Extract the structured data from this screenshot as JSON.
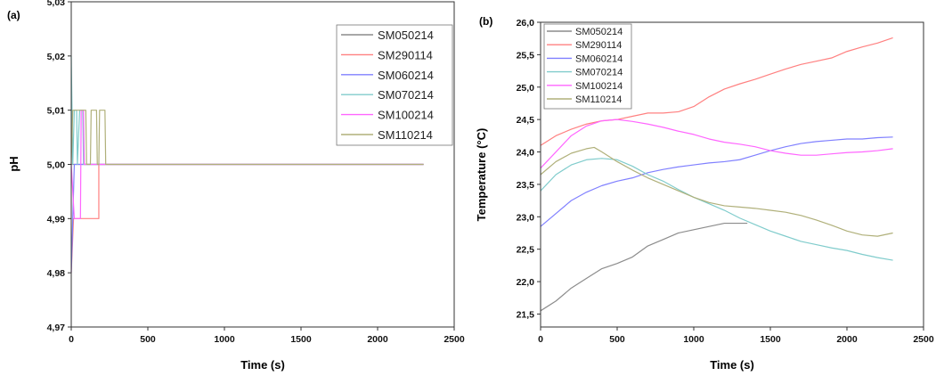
{
  "chart_data": [
    {
      "panel_label": "(a)",
      "type": "line",
      "xlabel": "Time (s)",
      "ylabel": "pH",
      "xlim": [
        0,
        2500
      ],
      "ylim": [
        4.97,
        5.03
      ],
      "xticks": [
        "0",
        "500",
        "1000",
        "1500",
        "2000",
        "2500"
      ],
      "yticks": [
        "4,97",
        "4,98",
        "4,99",
        "5,00",
        "5,01",
        "5,02",
        "5,03"
      ],
      "legend": "top-right",
      "series": [
        {
          "name": "SM050214",
          "color": "#8c8c8c",
          "points": [
            [
              0,
              5.0
            ],
            [
              2300,
              5.0
            ]
          ]
        },
        {
          "name": "SM290114",
          "color": "#ff8080",
          "points": [
            [
              0,
              4.98
            ],
            [
              15,
              4.99
            ],
            [
              180,
              4.99
            ],
            [
              180,
              5.0
            ],
            [
              2300,
              5.0
            ]
          ]
        },
        {
          "name": "SM060214",
          "color": "#8080ff",
          "points": [
            [
              0,
              4.98
            ],
            [
              20,
              5.0
            ],
            [
              2300,
              5.0
            ]
          ]
        },
        {
          "name": "SM070214",
          "color": "#80cccc",
          "points": [
            [
              0,
              5.02
            ],
            [
              10,
              5.0
            ],
            [
              20,
              5.01
            ],
            [
              35,
              5.01
            ],
            [
              40,
              5.0
            ],
            [
              55,
              5.01
            ],
            [
              75,
              5.01
            ],
            [
              80,
              5.0
            ],
            [
              2300,
              5.0
            ]
          ]
        },
        {
          "name": "SM100214",
          "color": "#ff66ff",
          "points": [
            [
              0,
              5.0
            ],
            [
              20,
              4.99
            ],
            [
              60,
              4.99
            ],
            [
              65,
              5.01
            ],
            [
              80,
              5.01
            ],
            [
              85,
              5.0
            ],
            [
              2300,
              5.0
            ]
          ]
        },
        {
          "name": "SM110214",
          "color": "#b0b07a",
          "points": [
            [
              0,
              5.0
            ],
            [
              10,
              5.01
            ],
            [
              95,
              5.01
            ],
            [
              100,
              5.0
            ],
            [
              125,
              5.0
            ],
            [
              130,
              5.01
            ],
            [
              165,
              5.01
            ],
            [
              170,
              5.0
            ],
            [
              180,
              5.0
            ],
            [
              185,
              5.01
            ],
            [
              220,
              5.01
            ],
            [
              225,
              5.0
            ],
            [
              2300,
              5.0
            ]
          ]
        }
      ]
    },
    {
      "panel_label": "(b)",
      "type": "line",
      "xlabel": "Time (s)",
      "ylabel": "Temperature (°C)",
      "xlim": [
        0,
        2500
      ],
      "ylim": [
        21.3,
        26.0
      ],
      "xticks": [
        "0",
        "500",
        "1000",
        "1500",
        "2000",
        "2500"
      ],
      "yticks": [
        "21,5",
        "22,0",
        "22,5",
        "23,0",
        "23,5",
        "24,0",
        "24,5",
        "25,0",
        "25,5",
        "26,0"
      ],
      "legend": "top-left",
      "series": [
        {
          "name": "SM050214",
          "color": "#8c8c8c",
          "points": [
            [
              0,
              21.55
            ],
            [
              100,
              21.7
            ],
            [
              200,
              21.9
            ],
            [
              300,
              22.05
            ],
            [
              400,
              22.2
            ],
            [
              500,
              22.28
            ],
            [
              600,
              22.38
            ],
            [
              700,
              22.55
            ],
            [
              800,
              22.65
            ],
            [
              900,
              22.75
            ],
            [
              1000,
              22.8
            ],
            [
              1100,
              22.85
            ],
            [
              1200,
              22.9
            ],
            [
              1350,
              22.9
            ]
          ]
        },
        {
          "name": "SM290114",
          "color": "#ff8080",
          "points": [
            [
              0,
              24.1
            ],
            [
              100,
              24.25
            ],
            [
              200,
              24.35
            ],
            [
              300,
              24.43
            ],
            [
              400,
              24.48
            ],
            [
              500,
              24.5
            ],
            [
              600,
              24.55
            ],
            [
              700,
              24.6
            ],
            [
              800,
              24.6
            ],
            [
              900,
              24.62
            ],
            [
              1000,
              24.7
            ],
            [
              1100,
              24.85
            ],
            [
              1200,
              24.97
            ],
            [
              1300,
              25.05
            ],
            [
              1400,
              25.12
            ],
            [
              1500,
              25.2
            ],
            [
              1600,
              25.28
            ],
            [
              1700,
              25.35
            ],
            [
              1800,
              25.4
            ],
            [
              1900,
              25.45
            ],
            [
              2000,
              25.55
            ],
            [
              2100,
              25.62
            ],
            [
              2200,
              25.68
            ],
            [
              2300,
              25.76
            ]
          ]
        },
        {
          "name": "SM060214",
          "color": "#8080ff",
          "points": [
            [
              0,
              22.85
            ],
            [
              100,
              23.05
            ],
            [
              200,
              23.25
            ],
            [
              300,
              23.38
            ],
            [
              400,
              23.48
            ],
            [
              500,
              23.55
            ],
            [
              600,
              23.6
            ],
            [
              700,
              23.68
            ],
            [
              800,
              23.73
            ],
            [
              900,
              23.77
            ],
            [
              1000,
              23.8
            ],
            [
              1100,
              23.83
            ],
            [
              1200,
              23.85
            ],
            [
              1300,
              23.88
            ],
            [
              1400,
              23.95
            ],
            [
              1500,
              24.02
            ],
            [
              1600,
              24.08
            ],
            [
              1700,
              24.13
            ],
            [
              1800,
              24.16
            ],
            [
              1900,
              24.18
            ],
            [
              2000,
              24.2
            ],
            [
              2100,
              24.2
            ],
            [
              2200,
              24.22
            ],
            [
              2300,
              24.23
            ]
          ]
        },
        {
          "name": "SM070214",
          "color": "#80cccc",
          "points": [
            [
              0,
              23.4
            ],
            [
              100,
              23.65
            ],
            [
              200,
              23.8
            ],
            [
              300,
              23.88
            ],
            [
              400,
              23.9
            ],
            [
              500,
              23.88
            ],
            [
              600,
              23.78
            ],
            [
              700,
              23.65
            ],
            [
              800,
              23.55
            ],
            [
              900,
              23.42
            ],
            [
              1000,
              23.3
            ],
            [
              1100,
              23.2
            ],
            [
              1200,
              23.1
            ],
            [
              1300,
              22.98
            ],
            [
              1400,
              22.88
            ],
            [
              1500,
              22.78
            ],
            [
              1600,
              22.7
            ],
            [
              1700,
              22.62
            ],
            [
              1800,
              22.57
            ],
            [
              1900,
              22.52
            ],
            [
              2000,
              22.48
            ],
            [
              2100,
              22.42
            ],
            [
              2200,
              22.37
            ],
            [
              2300,
              22.33
            ]
          ]
        },
        {
          "name": "SM100214",
          "color": "#ff66ff",
          "points": [
            [
              0,
              23.75
            ],
            [
              100,
              24.0
            ],
            [
              200,
              24.25
            ],
            [
              300,
              24.4
            ],
            [
              400,
              24.48
            ],
            [
              500,
              24.5
            ],
            [
              600,
              24.47
            ],
            [
              700,
              24.43
            ],
            [
              800,
              24.38
            ],
            [
              900,
              24.32
            ],
            [
              1000,
              24.27
            ],
            [
              1100,
              24.2
            ],
            [
              1200,
              24.15
            ],
            [
              1300,
              24.12
            ],
            [
              1400,
              24.08
            ],
            [
              1500,
              24.02
            ],
            [
              1600,
              23.98
            ],
            [
              1700,
              23.95
            ],
            [
              1800,
              23.95
            ],
            [
              1900,
              23.97
            ],
            [
              2000,
              23.99
            ],
            [
              2100,
              24.0
            ],
            [
              2200,
              24.02
            ],
            [
              2300,
              24.05
            ]
          ]
        },
        {
          "name": "SM110214",
          "color": "#b0b07a",
          "points": [
            [
              0,
              23.65
            ],
            [
              100,
              23.85
            ],
            [
              200,
              23.98
            ],
            [
              300,
              24.05
            ],
            [
              350,
              24.07
            ],
            [
              400,
              24.0
            ],
            [
              500,
              23.85
            ],
            [
              600,
              23.72
            ],
            [
              700,
              23.6
            ],
            [
              800,
              23.5
            ],
            [
              900,
              23.4
            ],
            [
              1000,
              23.3
            ],
            [
              1100,
              23.22
            ],
            [
              1200,
              23.17
            ],
            [
              1300,
              23.15
            ],
            [
              1400,
              23.13
            ],
            [
              1500,
              23.1
            ],
            [
              1600,
              23.07
            ],
            [
              1700,
              23.02
            ],
            [
              1800,
              22.95
            ],
            [
              1900,
              22.87
            ],
            [
              2000,
              22.78
            ],
            [
              2100,
              22.72
            ],
            [
              2200,
              22.7
            ],
            [
              2300,
              22.75
            ]
          ]
        }
      ]
    }
  ]
}
